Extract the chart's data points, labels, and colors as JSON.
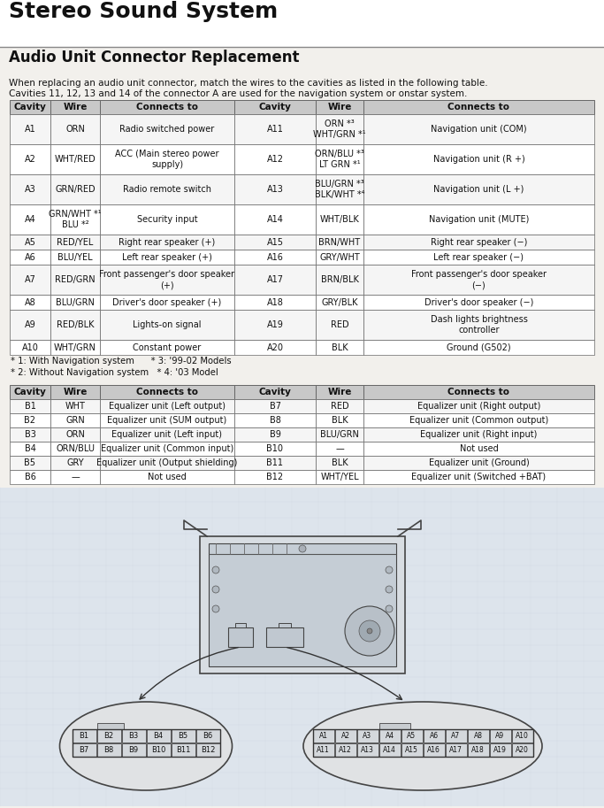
{
  "title": "Stereo Sound System",
  "subtitle": "Audio Unit Connector Replacement",
  "desc1": "When replacing an audio unit connector, match the wires to the cavities as listed in the following table.",
  "desc2": "Cavities 11, 12, 13 and 14 of the connector A are used for the navigation system or onstar system.",
  "table_a_headers": [
    "Cavity",
    "Wire",
    "Connects to",
    "Cavity",
    "Wire",
    "Connects to"
  ],
  "table_a_rows": [
    [
      "A1",
      "ORN",
      "Radio switched power",
      "A11",
      "ORN *³\nWHT/GRN *¹",
      "Navigation unit (COM)"
    ],
    [
      "A2",
      "WHT/RED",
      "ACC (Main stereo power\nsupply)",
      "A12",
      "ORN/BLU *³\nLT GRN *¹",
      "Navigation unit (R +)"
    ],
    [
      "A3",
      "GRN/RED",
      "Radio remote switch",
      "A13",
      "BLU/GRN *³\nBLK/WHT *⁴",
      "Navigation unit (L +)"
    ],
    [
      "A4",
      "GRN/WHT *¹\nBLU *²",
      "Security input",
      "A14",
      "WHT/BLK",
      "Navigation unit (MUTE)"
    ],
    [
      "A5",
      "RED/YEL",
      "Right rear speaker (+)",
      "A15",
      "BRN/WHT",
      "Right rear speaker (−)"
    ],
    [
      "A6",
      "BLU/YEL",
      "Left rear speaker (+)",
      "A16",
      "GRY/WHT",
      "Left rear speaker (−)"
    ],
    [
      "A7",
      "RED/GRN",
      "Front passenger's door speaker\n(+)",
      "A17",
      "BRN/BLK",
      "Front passenger's door speaker\n(−)"
    ],
    [
      "A8",
      "BLU/GRN",
      "Driver's door speaker (+)",
      "A18",
      "GRY/BLK",
      "Driver's door speaker (−)"
    ],
    [
      "A9",
      "RED/BLK",
      "Lights-on signal",
      "A19",
      "RED",
      "Dash lights brightness\ncontroller"
    ],
    [
      "A10",
      "WHT/GRN",
      "Constant power",
      "A20",
      "BLK",
      "Ground (G502)"
    ]
  ],
  "footnotes_a": [
    "* 1: With Navigation system      * 3: '99-02 Models",
    "* 2: Without Navigation system   * 4: '03 Model"
  ],
  "table_b_headers": [
    "Cavity",
    "Wire",
    "Connects to",
    "Cavity",
    "Wire",
    "Connects to"
  ],
  "table_b_rows": [
    [
      "B1",
      "WHT",
      "Equalizer unit (Left output)",
      "B7",
      "RED",
      "Equalizer unit (Right output)"
    ],
    [
      "B2",
      "GRN",
      "Equalizer unit (SUM output)",
      "B8",
      "BLK",
      "Equalizer unit (Common output)"
    ],
    [
      "B3",
      "ORN",
      "Equalizer unit (Left input)",
      "B9",
      "BLU/GRN",
      "Equalizer unit (Right input)"
    ],
    [
      "B4",
      "ORN/BLU",
      "Equalizer unit (Common input)",
      "B10",
      "—",
      "Not used"
    ],
    [
      "B5",
      "GRY",
      "Equalizer unit (Output shielding)",
      "B11",
      "BLK",
      "Equalizer unit (Ground)"
    ],
    [
      "B6",
      "—",
      "Not used",
      "B12",
      "WHT/YEL",
      "Equalizer unit (Switched +BAT)"
    ]
  ],
  "conn_b_r1": [
    "B1",
    "B2",
    "B3",
    "B4",
    "B5",
    "B6"
  ],
  "conn_b_r2": [
    "B7",
    "B8",
    "B9",
    "B10",
    "B11",
    "B12"
  ],
  "conn_a_r1": [
    "A1",
    "A2",
    "A3",
    "A4",
    "A5",
    "A6",
    "A7",
    "A8",
    "A9",
    "A10"
  ],
  "conn_a_r2": [
    "A11",
    "A12",
    "A13",
    "A14",
    "A15",
    "A16",
    "A17",
    "A18",
    "A19",
    "A20"
  ],
  "bg": "#f2f0ec",
  "white": "#ffffff",
  "header_fc": "#c8c8c8",
  "row_odd": "#f5f5f5",
  "row_even": "#ffffff",
  "border": "#666666",
  "text": "#111111",
  "diag_bg": "#e8eaec"
}
